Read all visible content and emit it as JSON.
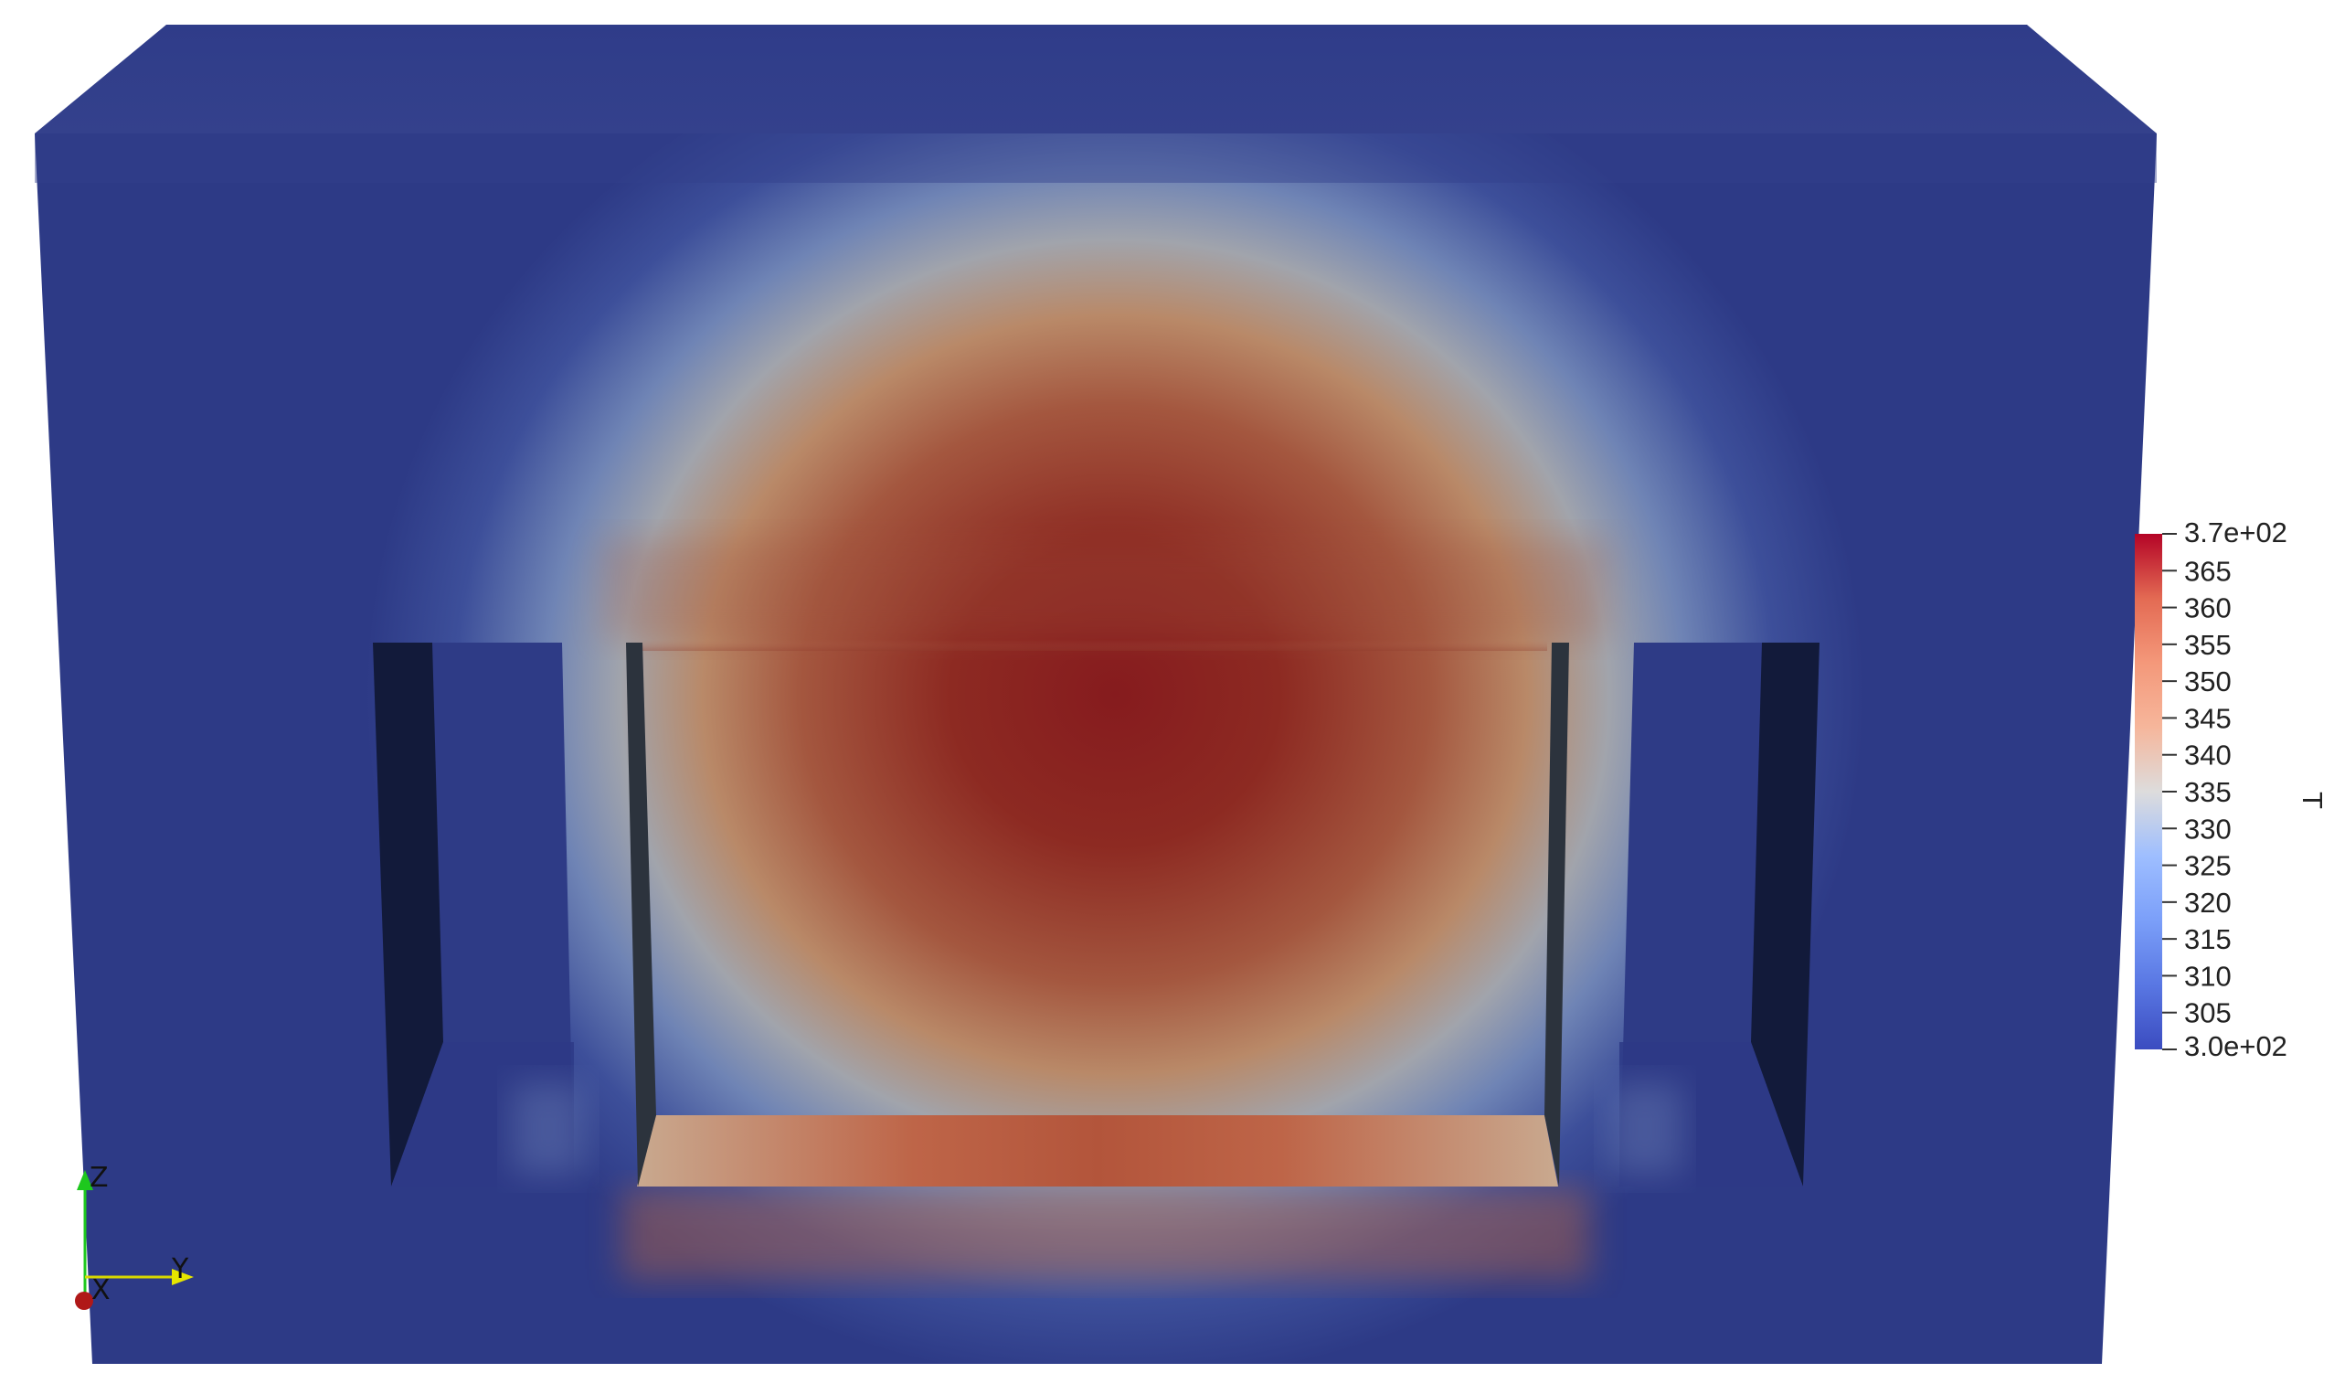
{
  "scene": {
    "field_name": "T",
    "colormap": "Cool to Warm",
    "range_min": 300,
    "range_max": 370,
    "range_min_label": "3.0e+02",
    "range_max_label": "3.7e+02",
    "ticks": [
      "365",
      "360",
      "355",
      "350",
      "345",
      "340",
      "335",
      "330",
      "325",
      "320",
      "315",
      "310",
      "305"
    ],
    "tick_values": [
      365,
      360,
      355,
      350,
      345,
      340,
      335,
      330,
      325,
      320,
      315,
      310,
      305
    ]
  },
  "orientation_axes": {
    "x_label": "X",
    "y_label": "Y",
    "z_label": "Z",
    "x_color": "#c81414",
    "y_color": "#e6e600",
    "z_color": "#1ec81e"
  },
  "colors": {
    "background": "#ffffff",
    "cold": "#2d3a86",
    "hot": "#8a1a1c",
    "slot_shadow": "#121a3a",
    "wall_dark": "#2a2f3a"
  }
}
